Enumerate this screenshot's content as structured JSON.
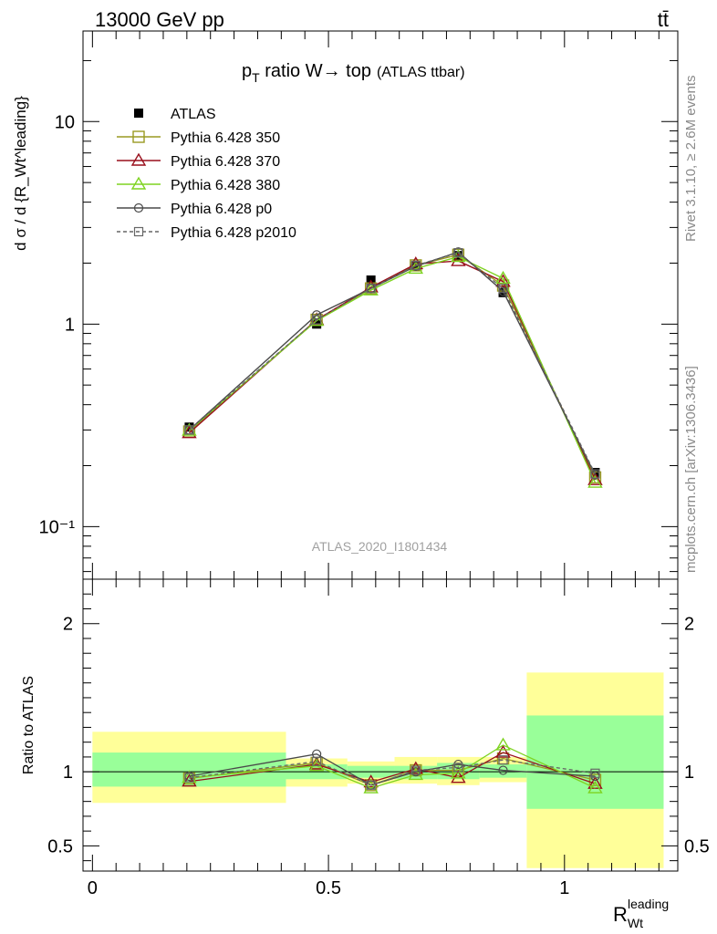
{
  "header": {
    "energy": "13000 GeV pp",
    "process": "tt̄",
    "title_main": "p",
    "title_sub": "T",
    "title_rest": " ratio W→ top",
    "title_note": "(ATLAS ttbar)",
    "analysis_id": "ATLAS_2020_I1801434",
    "side_version": "Rivet 3.1.10, ≥ 2.6M events",
    "side_source": "mcplots.cern.ch [arXiv:1306.3436]"
  },
  "axes": {
    "ylabel_top": "d σ / d {R_Wt^leading}",
    "ylabel_ratio": "Ratio to ATLAS",
    "xlabel_main": "R",
    "xlabel_sub": "Wt",
    "xlabel_sup": "leading"
  },
  "colors": {
    "atlas": "#000000",
    "p350": "#9a9a22",
    "p370": "#990f1c",
    "p380": "#7ed321",
    "p0": "#4a4a4a",
    "p2010": "#666666",
    "band_outer": "#ffff99",
    "band_inner": "#99ff99"
  },
  "chart_data": [
    {
      "type": "line",
      "panel": "main",
      "yscale": "log",
      "xlim": [
        -0.02,
        1.24
      ],
      "ylim": [
        0.055,
        28
      ],
      "x_ticks": [
        0,
        0.5,
        1
      ],
      "y_ticks": [
        0.1,
        1,
        10
      ],
      "y_tick_labels": [
        "10⁻¹",
        "1",
        "10"
      ],
      "x_bins": [
        [
          0,
          0.41
        ],
        [
          0.41,
          0.54
        ],
        [
          0.54,
          0.64
        ],
        [
          0.64,
          0.73
        ],
        [
          0.73,
          0.82
        ],
        [
          0.82,
          0.92
        ],
        [
          0.92,
          1.21
        ]
      ],
      "x": [
        0.205,
        0.475,
        0.59,
        0.685,
        0.775,
        0.87,
        1.065
      ],
      "series": [
        {
          "name": "ATLAS",
          "key": "atlas",
          "marker": "filled-square",
          "line": "none",
          "values": [
            0.31,
            1.0,
            1.65,
            1.93,
            2.18,
            1.43,
            0.185
          ]
        },
        {
          "name": "Pythia 6.428 350",
          "key": "p350",
          "marker": "open-square",
          "line": "solid",
          "values": [
            0.295,
            1.05,
            1.5,
            1.95,
            2.2,
            1.55,
            0.175
          ]
        },
        {
          "name": "Pythia 6.428 370",
          "key": "p370",
          "marker": "open-triangle",
          "line": "solid",
          "values": [
            0.29,
            1.05,
            1.52,
            1.98,
            2.05,
            1.62,
            0.17
          ]
        },
        {
          "name": "Pythia 6.428 380",
          "key": "p380",
          "marker": "open-triangle",
          "line": "solid",
          "values": [
            0.298,
            1.04,
            1.47,
            1.88,
            2.15,
            1.68,
            0.165
          ]
        },
        {
          "name": "Pythia 6.428 p0",
          "key": "p0",
          "marker": "open-circle",
          "line": "solid",
          "values": [
            0.3,
            1.11,
            1.5,
            1.93,
            2.27,
            1.45,
            0.18
          ]
        },
        {
          "name": "Pythia 6.428 p2010",
          "key": "p2010",
          "marker": "open-square-small",
          "line": "dashed",
          "values": [
            0.3,
            1.05,
            1.5,
            1.95,
            2.25,
            1.5,
            0.182
          ]
        }
      ]
    },
    {
      "type": "line",
      "panel": "ratio",
      "yscale": "linear",
      "xlim": [
        -0.02,
        1.24
      ],
      "ylim": [
        0.33,
        2.3
      ],
      "x_ticks": [
        0,
        0.5,
        1
      ],
      "x_tick_labels": [
        "0",
        "0.5",
        "1"
      ],
      "y_ticks": [
        0.5,
        1,
        2
      ],
      "y_tick_labels": [
        "0.5",
        "1",
        "2"
      ],
      "bands": {
        "outer": [
          [
            0.79,
            1.27
          ],
          [
            0.9,
            1.09
          ],
          [
            0.92,
            1.07
          ],
          [
            0.92,
            1.1
          ],
          [
            0.91,
            1.1
          ],
          [
            0.93,
            1.1
          ],
          [
            0.35,
            1.67
          ]
        ],
        "inner": [
          [
            0.9,
            1.13
          ],
          [
            0.95,
            1.05
          ],
          [
            0.96,
            1.04
          ],
          [
            0.95,
            1.04
          ],
          [
            0.95,
            1.06
          ],
          [
            0.96,
            1.05
          ],
          [
            0.75,
            1.38
          ]
        ]
      },
      "series": [
        {
          "name": "Pythia 6.428 350",
          "key": "p350",
          "values": [
            0.955,
            1.06,
            0.91,
            1.01,
            1.01,
            1.09,
            0.945
          ]
        },
        {
          "name": "Pythia 6.428 370",
          "key": "p370",
          "values": [
            0.935,
            1.05,
            0.93,
            1.02,
            0.96,
            1.13,
            0.92
          ]
        },
        {
          "name": "Pythia 6.428 380",
          "key": "p380",
          "values": [
            0.96,
            1.04,
            0.89,
            0.98,
            0.99,
            1.18,
            0.89
          ]
        },
        {
          "name": "Pythia 6.428 p0",
          "key": "p0",
          "values": [
            0.97,
            1.12,
            0.91,
            1.0,
            1.05,
            1.01,
            0.97
          ]
        },
        {
          "name": "Pythia 6.428 p2010",
          "key": "p2010",
          "values": [
            0.96,
            1.07,
            0.91,
            1.01,
            1.03,
            1.08,
            0.99
          ]
        }
      ]
    }
  ]
}
